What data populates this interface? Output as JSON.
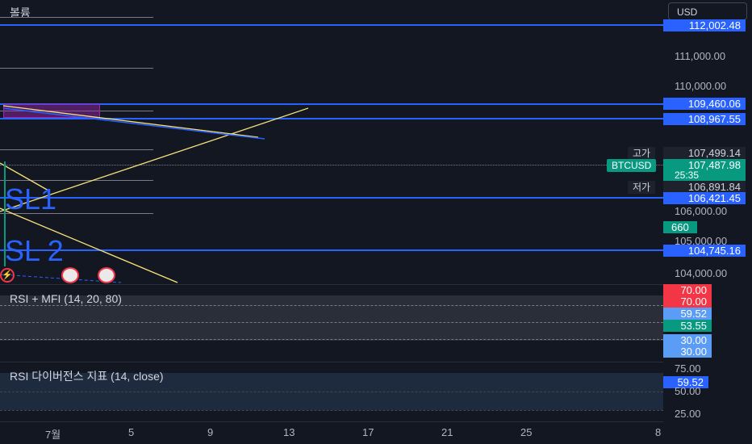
{
  "volume_label": "볼륨",
  "currency_button": "USD",
  "price_ticks": [
    "111,000.00",
    "110,000.00",
    "105,000.00",
    "104,000.00",
    "106,000.00"
  ],
  "price_tags": {
    "top": "112,002.48",
    "line1": "109,460.06",
    "line2": "108,967.55",
    "high_label": "고가",
    "high": "107,499.14",
    "symbol": "BTCUSD",
    "last": "107,487.98",
    "countdown": "25:35",
    "low_label": "저가",
    "low": "106,891.84",
    "line3": "106,421.45",
    "volume": "660",
    "line4": "104,745.16"
  },
  "chart_texts": {
    "sl1": "SL1",
    "sl2": "SL 2"
  },
  "rsi_mfi": {
    "title": "RSI + MFI (14, 20, 80)",
    "tags": [
      "70.00",
      "70.00",
      "59.52",
      "53.55",
      "30.00",
      "30.00"
    ]
  },
  "rsi_div": {
    "title": "RSI 다이버전스 지표 (14, close)",
    "ticks": [
      "75.00",
      "50.00",
      "25.00"
    ],
    "tag": "59.52"
  },
  "x_axis": [
    "7월",
    "5",
    "9",
    "13",
    "17",
    "21",
    "25",
    "8"
  ],
  "colors": {
    "accent": "#2962ff",
    "up": "#089981",
    "down": "#f23645",
    "trend": "#f5e27a"
  }
}
